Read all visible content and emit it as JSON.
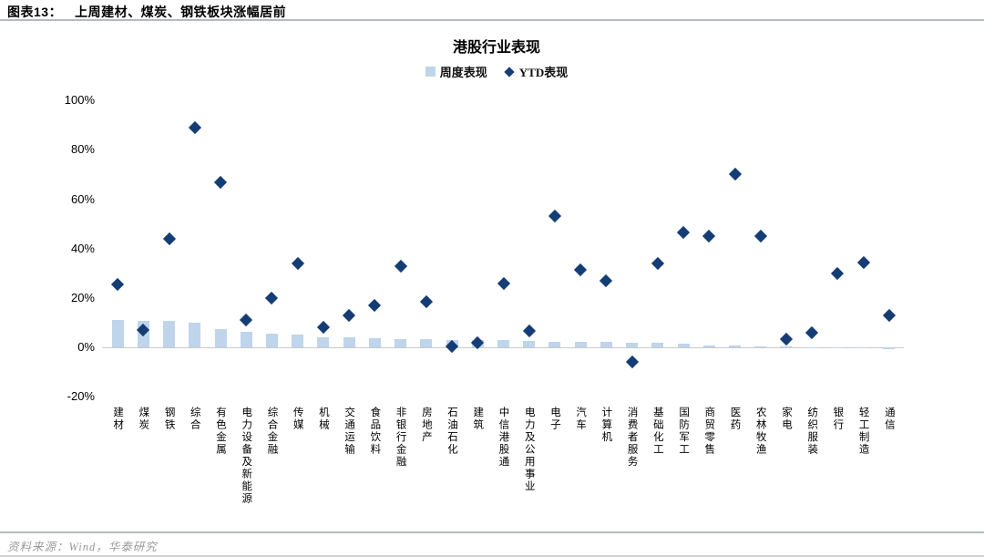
{
  "header": {
    "label": "图表13：",
    "title": "上周建材、煤炭、钢铁板块涨幅居前"
  },
  "footer": {
    "source": "资料来源：Wind，华泰研究"
  },
  "colors": {
    "bar": "#bed5ec",
    "diamond": "#153d75",
    "axis_line": "#c9c9c9",
    "source_text": "#9a9a9a"
  },
  "chart_data": {
    "type": "bar",
    "title": "港股行业表现",
    "legend": [
      "周度表现",
      "YTD表现"
    ],
    "legend_position": "top",
    "grid": false,
    "ylim": [
      -20,
      100
    ],
    "yticks": [
      100,
      80,
      60,
      40,
      20,
      0,
      -20
    ],
    "ytick_suffix": "%",
    "categories": [
      "建材",
      "煤炭",
      "钢铁",
      "综合",
      "有色金属",
      "电力设备及新能源",
      "综合金融",
      "传媒",
      "机械",
      "交通运输",
      "食品饮料",
      "非银行金融",
      "房地产",
      "石油石化",
      "建筑",
      "中信港股通",
      "电力及公用事业",
      "电子",
      "汽车",
      "计算机",
      "消费者服务",
      "基础化工",
      "国防军工",
      "商贸零售",
      "医药",
      "农林牧渔",
      "家电",
      "纺织服装",
      "银行",
      "轻工制造",
      "通信"
    ],
    "series": [
      {
        "name": "周度表现",
        "type": "bar",
        "values": [
          11.2,
          10.7,
          10.6,
          10.1,
          7.5,
          6.3,
          5.6,
          5.0,
          4.2,
          3.9,
          3.6,
          3.5,
          3.4,
          3.0,
          2.9,
          2.9,
          2.5,
          2.4,
          2.2,
          2.1,
          1.9,
          1.8,
          1.3,
          0.9,
          0.6,
          0.4,
          0.25,
          0.1,
          -0.4,
          -0.5,
          -0.6
        ]
      },
      {
        "name": "YTD表现",
        "type": "scatter",
        "values": [
          25.5,
          7,
          44,
          89,
          67,
          11,
          20,
          34,
          8,
          13,
          17,
          33,
          18.5,
          0.5,
          2,
          26,
          6.5,
          53,
          31.5,
          27,
          -6,
          34,
          46.5,
          45,
          70,
          45,
          3.5,
          6,
          30,
          34.5,
          13
        ]
      }
    ]
  }
}
